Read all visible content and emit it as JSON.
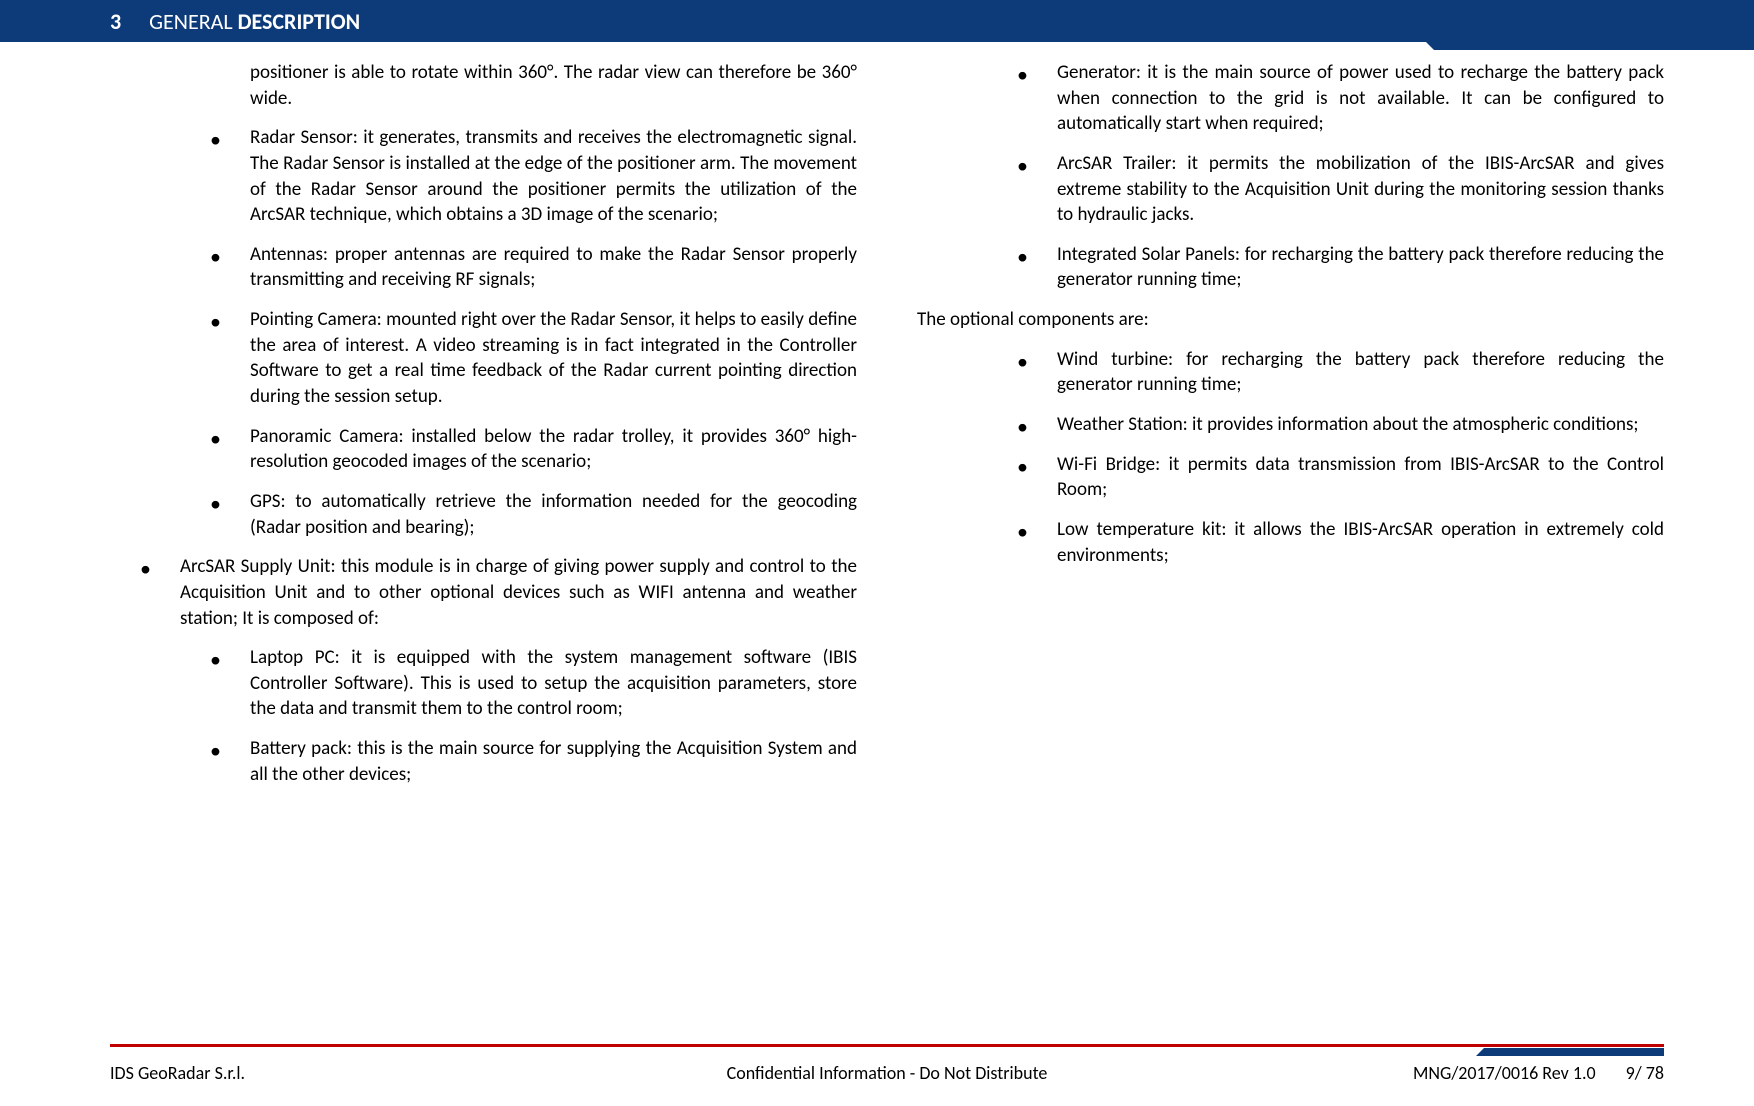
{
  "header": {
    "chapter_number": "3",
    "chapter_title_light": "GENERAL ",
    "chapter_title_bold": "DESCRIPTION"
  },
  "left_column": {
    "continuation_text": "positioner is able to rotate within 360°. The radar view can therefore be 360° wide.",
    "sublist1": [
      "Radar Sensor: it generates, transmits and receives the electromagnetic signal. The Radar Sensor is installed at the edge of the positioner arm. The movement of the Radar Sensor around the positioner permits the utilization of the ArcSAR technique, which obtains a 3D image of the scenario;",
      "Antennas: proper antennas are required to make the Radar Sensor properly transmitting and receiving RF signals;",
      "Pointing Camera: mounted right over the Radar Sensor, it helps to easily define the area of interest. A video streaming is in fact integrated in the Controller Software to get a real time feedback of the Radar current pointing direction during the session setup.",
      "Panoramic Camera: installed below the radar trolley, it provides 360° high-resolution geocoded images of the scenario;",
      "GPS: to automatically retrieve the information needed for the geocoding (Radar position and bearing);"
    ],
    "main_item": "ArcSAR Supply Unit: this module is in charge of giving power supply and control to the Acquisition Unit and to other optional devices such as WIFI antenna and weather station; It is composed of:",
    "sublist2": [
      "Laptop PC: it is equipped with the system management software (IBIS Controller Software). This is used to setup the acquisition parameters, store the data and transmit them to the control room;",
      "Battery pack: this is the main source for supplying the Acquisition System and all the other devices;"
    ]
  },
  "right_column": {
    "sublist1": [
      "Generator: it is the main source of power used to recharge the battery pack when connection to the grid is not available. It can be configured to automatically start when required;",
      "ArcSAR Trailer: it permits the mobilization of the IBIS-ArcSAR and gives extreme stability to the Acquisition Unit during the monitoring session thanks to hydraulic jacks.",
      "Integrated Solar Panels: for recharging the battery pack therefore reducing the generator running time;"
    ],
    "optional_intro": "The optional components are:",
    "sublist2": [
      "Wind turbine: for recharging the battery pack therefore reducing the generator running time;",
      "Weather Station: it provides information about the atmospheric conditions;",
      "Wi-Fi Bridge: it permits data transmission from IBIS-ArcSAR to the Control Room;",
      "Low temperature kit: it allows the IBIS-ArcSAR operation in extremely cold environments;"
    ]
  },
  "footer": {
    "company": "IDS GeoRadar S.r.l.",
    "confidential": "Confidential Information - Do Not Distribute",
    "doc_ref": "MNG/2017/0016  Rev 1.0",
    "page": "9/ 78"
  },
  "colors": {
    "header_bg": "#0d3b7a",
    "footer_line": "#c00000",
    "text": "#000000",
    "header_text": "#ffffff"
  }
}
